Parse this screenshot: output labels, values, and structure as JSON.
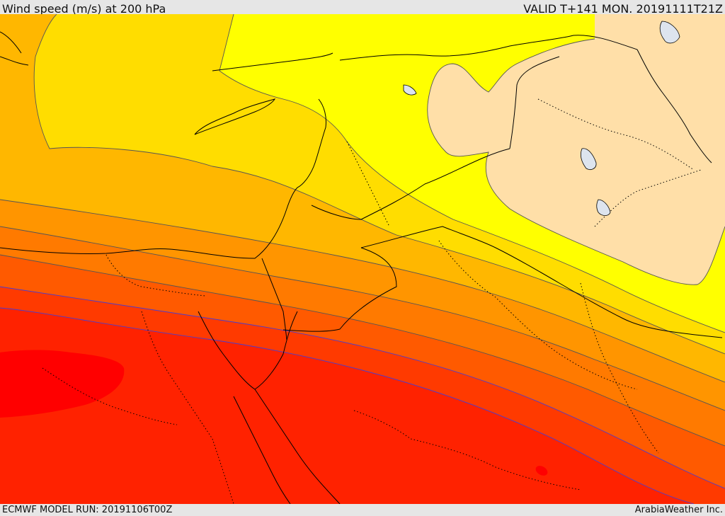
{
  "header": {
    "title": "Wind speed (m/s) at 200 hPa",
    "valid": "VALID T+141 MON. 20191111T21Z"
  },
  "footer": {
    "model_run": "ECMWF MODEL RUN: 20191106T00Z",
    "credit": "ArabiaWeather Inc."
  },
  "colors": {
    "band_very_low": "#ffdfa8",
    "band_low": "#ffff00",
    "band_1": "#ffdd00",
    "band_2": "#ffb700",
    "band_3": "#ff9500",
    "band_4": "#ff7a00",
    "band_5": "#ff5a00",
    "band_6": "#ff3a00",
    "band_7": "#ff2200",
    "band_max": "#ff0000",
    "lake": "#dde4ee",
    "contour": "#555555",
    "contour_high": "#4b3ccf",
    "border": "#000000"
  }
}
